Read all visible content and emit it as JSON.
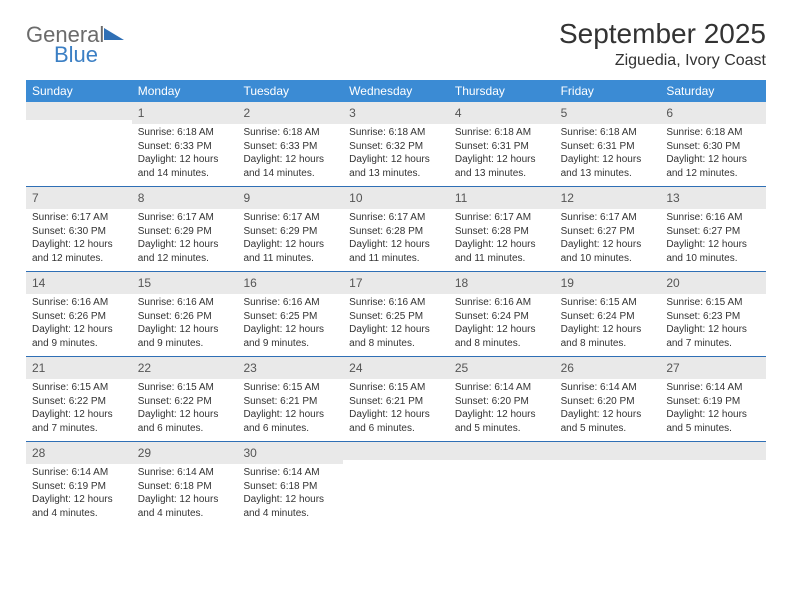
{
  "brand": {
    "word1": "General",
    "word2": "Blue"
  },
  "title": "September 2025",
  "location": "Ziguedia, Ivory Coast",
  "colors": {
    "header_bg": "#3b8bd4",
    "week_border": "#2f6fb5",
    "daynum_bg": "#e9e9e9",
    "text": "#333333",
    "logo_gray": "#6b6b6b",
    "logo_blue": "#3b7fc4"
  },
  "layout": {
    "columns": 7,
    "rows": 5
  },
  "days_of_week": [
    "Sunday",
    "Monday",
    "Tuesday",
    "Wednesday",
    "Thursday",
    "Friday",
    "Saturday"
  ],
  "weeks": [
    [
      {
        "n": "",
        "sunrise": "",
        "sunset": "",
        "daylight": ""
      },
      {
        "n": "1",
        "sunrise": "Sunrise: 6:18 AM",
        "sunset": "Sunset: 6:33 PM",
        "daylight": "Daylight: 12 hours and 14 minutes."
      },
      {
        "n": "2",
        "sunrise": "Sunrise: 6:18 AM",
        "sunset": "Sunset: 6:33 PM",
        "daylight": "Daylight: 12 hours and 14 minutes."
      },
      {
        "n": "3",
        "sunrise": "Sunrise: 6:18 AM",
        "sunset": "Sunset: 6:32 PM",
        "daylight": "Daylight: 12 hours and 13 minutes."
      },
      {
        "n": "4",
        "sunrise": "Sunrise: 6:18 AM",
        "sunset": "Sunset: 6:31 PM",
        "daylight": "Daylight: 12 hours and 13 minutes."
      },
      {
        "n": "5",
        "sunrise": "Sunrise: 6:18 AM",
        "sunset": "Sunset: 6:31 PM",
        "daylight": "Daylight: 12 hours and 13 minutes."
      },
      {
        "n": "6",
        "sunrise": "Sunrise: 6:18 AM",
        "sunset": "Sunset: 6:30 PM",
        "daylight": "Daylight: 12 hours and 12 minutes."
      }
    ],
    [
      {
        "n": "7",
        "sunrise": "Sunrise: 6:17 AM",
        "sunset": "Sunset: 6:30 PM",
        "daylight": "Daylight: 12 hours and 12 minutes."
      },
      {
        "n": "8",
        "sunrise": "Sunrise: 6:17 AM",
        "sunset": "Sunset: 6:29 PM",
        "daylight": "Daylight: 12 hours and 12 minutes."
      },
      {
        "n": "9",
        "sunrise": "Sunrise: 6:17 AM",
        "sunset": "Sunset: 6:29 PM",
        "daylight": "Daylight: 12 hours and 11 minutes."
      },
      {
        "n": "10",
        "sunrise": "Sunrise: 6:17 AM",
        "sunset": "Sunset: 6:28 PM",
        "daylight": "Daylight: 12 hours and 11 minutes."
      },
      {
        "n": "11",
        "sunrise": "Sunrise: 6:17 AM",
        "sunset": "Sunset: 6:28 PM",
        "daylight": "Daylight: 12 hours and 11 minutes."
      },
      {
        "n": "12",
        "sunrise": "Sunrise: 6:17 AM",
        "sunset": "Sunset: 6:27 PM",
        "daylight": "Daylight: 12 hours and 10 minutes."
      },
      {
        "n": "13",
        "sunrise": "Sunrise: 6:16 AM",
        "sunset": "Sunset: 6:27 PM",
        "daylight": "Daylight: 12 hours and 10 minutes."
      }
    ],
    [
      {
        "n": "14",
        "sunrise": "Sunrise: 6:16 AM",
        "sunset": "Sunset: 6:26 PM",
        "daylight": "Daylight: 12 hours and 9 minutes."
      },
      {
        "n": "15",
        "sunrise": "Sunrise: 6:16 AM",
        "sunset": "Sunset: 6:26 PM",
        "daylight": "Daylight: 12 hours and 9 minutes."
      },
      {
        "n": "16",
        "sunrise": "Sunrise: 6:16 AM",
        "sunset": "Sunset: 6:25 PM",
        "daylight": "Daylight: 12 hours and 9 minutes."
      },
      {
        "n": "17",
        "sunrise": "Sunrise: 6:16 AM",
        "sunset": "Sunset: 6:25 PM",
        "daylight": "Daylight: 12 hours and 8 minutes."
      },
      {
        "n": "18",
        "sunrise": "Sunrise: 6:16 AM",
        "sunset": "Sunset: 6:24 PM",
        "daylight": "Daylight: 12 hours and 8 minutes."
      },
      {
        "n": "19",
        "sunrise": "Sunrise: 6:15 AM",
        "sunset": "Sunset: 6:24 PM",
        "daylight": "Daylight: 12 hours and 8 minutes."
      },
      {
        "n": "20",
        "sunrise": "Sunrise: 6:15 AM",
        "sunset": "Sunset: 6:23 PM",
        "daylight": "Daylight: 12 hours and 7 minutes."
      }
    ],
    [
      {
        "n": "21",
        "sunrise": "Sunrise: 6:15 AM",
        "sunset": "Sunset: 6:22 PM",
        "daylight": "Daylight: 12 hours and 7 minutes."
      },
      {
        "n": "22",
        "sunrise": "Sunrise: 6:15 AM",
        "sunset": "Sunset: 6:22 PM",
        "daylight": "Daylight: 12 hours and 6 minutes."
      },
      {
        "n": "23",
        "sunrise": "Sunrise: 6:15 AM",
        "sunset": "Sunset: 6:21 PM",
        "daylight": "Daylight: 12 hours and 6 minutes."
      },
      {
        "n": "24",
        "sunrise": "Sunrise: 6:15 AM",
        "sunset": "Sunset: 6:21 PM",
        "daylight": "Daylight: 12 hours and 6 minutes."
      },
      {
        "n": "25",
        "sunrise": "Sunrise: 6:14 AM",
        "sunset": "Sunset: 6:20 PM",
        "daylight": "Daylight: 12 hours and 5 minutes."
      },
      {
        "n": "26",
        "sunrise": "Sunrise: 6:14 AM",
        "sunset": "Sunset: 6:20 PM",
        "daylight": "Daylight: 12 hours and 5 minutes."
      },
      {
        "n": "27",
        "sunrise": "Sunrise: 6:14 AM",
        "sunset": "Sunset: 6:19 PM",
        "daylight": "Daylight: 12 hours and 5 minutes."
      }
    ],
    [
      {
        "n": "28",
        "sunrise": "Sunrise: 6:14 AM",
        "sunset": "Sunset: 6:19 PM",
        "daylight": "Daylight: 12 hours and 4 minutes."
      },
      {
        "n": "29",
        "sunrise": "Sunrise: 6:14 AM",
        "sunset": "Sunset: 6:18 PM",
        "daylight": "Daylight: 12 hours and 4 minutes."
      },
      {
        "n": "30",
        "sunrise": "Sunrise: 6:14 AM",
        "sunset": "Sunset: 6:18 PM",
        "daylight": "Daylight: 12 hours and 4 minutes."
      },
      {
        "n": "",
        "sunrise": "",
        "sunset": "",
        "daylight": ""
      },
      {
        "n": "",
        "sunrise": "",
        "sunset": "",
        "daylight": ""
      },
      {
        "n": "",
        "sunrise": "",
        "sunset": "",
        "daylight": ""
      },
      {
        "n": "",
        "sunrise": "",
        "sunset": "",
        "daylight": ""
      }
    ]
  ]
}
